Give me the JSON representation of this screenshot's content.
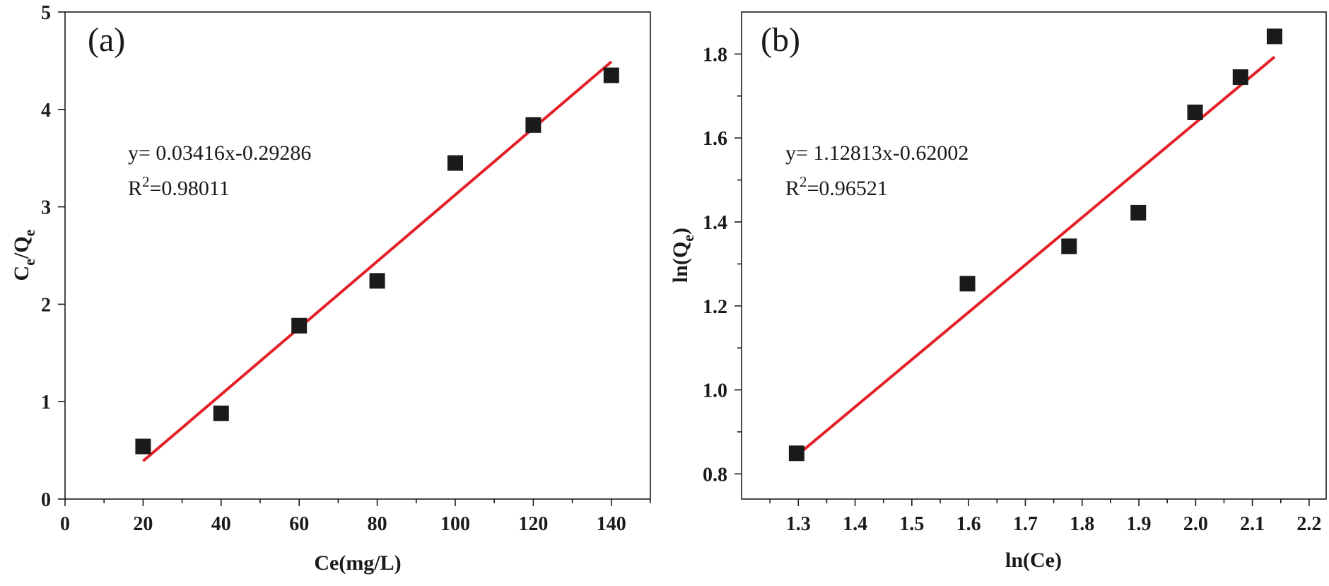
{
  "chart_data": [
    {
      "type": "scatter",
      "panel_label": "(a)",
      "xlabel": "Ce(mg/L)",
      "ylabel": "C",
      "ylabel_sub1": "e",
      "ylabel_slash": "/Q",
      "ylabel_sub2": "e",
      "xlim": [
        0,
        150
      ],
      "ylim": [
        0,
        5
      ],
      "xticks": [
        0,
        20,
        40,
        60,
        80,
        100,
        120,
        140
      ],
      "xtick_labels": [
        "0",
        "20",
        "40",
        "60",
        "80",
        "100",
        "120",
        "140"
      ],
      "xminor": [
        10,
        30,
        50,
        70,
        90,
        110,
        130,
        150
      ],
      "yticks": [
        0,
        1,
        2,
        3,
        4,
        5
      ],
      "ytick_labels": [
        "0",
        "1",
        "2",
        "3",
        "4",
        "5"
      ],
      "points": [
        {
          "x": 20,
          "y": 0.54
        },
        {
          "x": 40,
          "y": 0.88
        },
        {
          "x": 60,
          "y": 1.78
        },
        {
          "x": 80,
          "y": 2.24
        },
        {
          "x": 100,
          "y": 3.45
        },
        {
          "x": 120,
          "y": 3.84
        },
        {
          "x": 140,
          "y": 4.35
        }
      ],
      "fit": {
        "slope": 0.03416,
        "intercept": -0.29286,
        "x_range": [
          20,
          140
        ]
      },
      "equation": "y= 0.03416x-0.29286",
      "r2_prefix": "R",
      "r2_sup": "2",
      "r2_value": "=0.98011",
      "series_color": "#1a1a1a",
      "fit_color": "#e32028"
    },
    {
      "type": "scatter",
      "panel_label": "(b)",
      "xlabel": "ln(Ce)",
      "ylabel": "ln(Q",
      "ylabel_sub": "e",
      "ylabel_end": ")",
      "xlim": [
        1.2,
        2.23
      ],
      "ylim": [
        0.74,
        1.9
      ],
      "xticks": [
        1.3,
        1.4,
        1.5,
        1.6,
        1.7,
        1.8,
        1.9,
        2.0,
        2.1,
        2.2
      ],
      "xtick_labels": [
        "1.3",
        "1.4",
        "1.5",
        "1.6",
        "1.7",
        "1.8",
        "1.9",
        "2.0",
        "2.1",
        "2.2"
      ],
      "xminor": [
        1.25,
        1.35,
        1.45,
        1.55,
        1.65,
        1.75,
        1.85,
        1.95,
        2.05,
        2.15
      ],
      "yticks": [
        0.8,
        1.0,
        1.2,
        1.4,
        1.6,
        1.8
      ],
      "ytick_labels": [
        "0.8",
        "1.0",
        "1.2",
        "1.4",
        "1.6",
        "1.8"
      ],
      "yminor": [
        0.9,
        1.1,
        1.3,
        1.5,
        1.7
      ],
      "points": [
        {
          "x": 1.297,
          "y": 0.849
        },
        {
          "x": 1.598,
          "y": 1.253
        },
        {
          "x": 1.777,
          "y": 1.342
        },
        {
          "x": 1.899,
          "y": 1.422
        },
        {
          "x": 1.999,
          "y": 1.661
        },
        {
          "x": 2.079,
          "y": 1.745
        },
        {
          "x": 2.139,
          "y": 1.842
        }
      ],
      "fit": {
        "slope": 1.12813,
        "intercept": -0.62002,
        "x_range": [
          1.297,
          2.139
        ]
      },
      "equation": "y= 1.12813x-0.62002",
      "r2_prefix": "R",
      "r2_sup": "2",
      "r2_value": "=0.96521",
      "series_color": "#1a1a1a",
      "fit_color": "#e32028"
    }
  ]
}
